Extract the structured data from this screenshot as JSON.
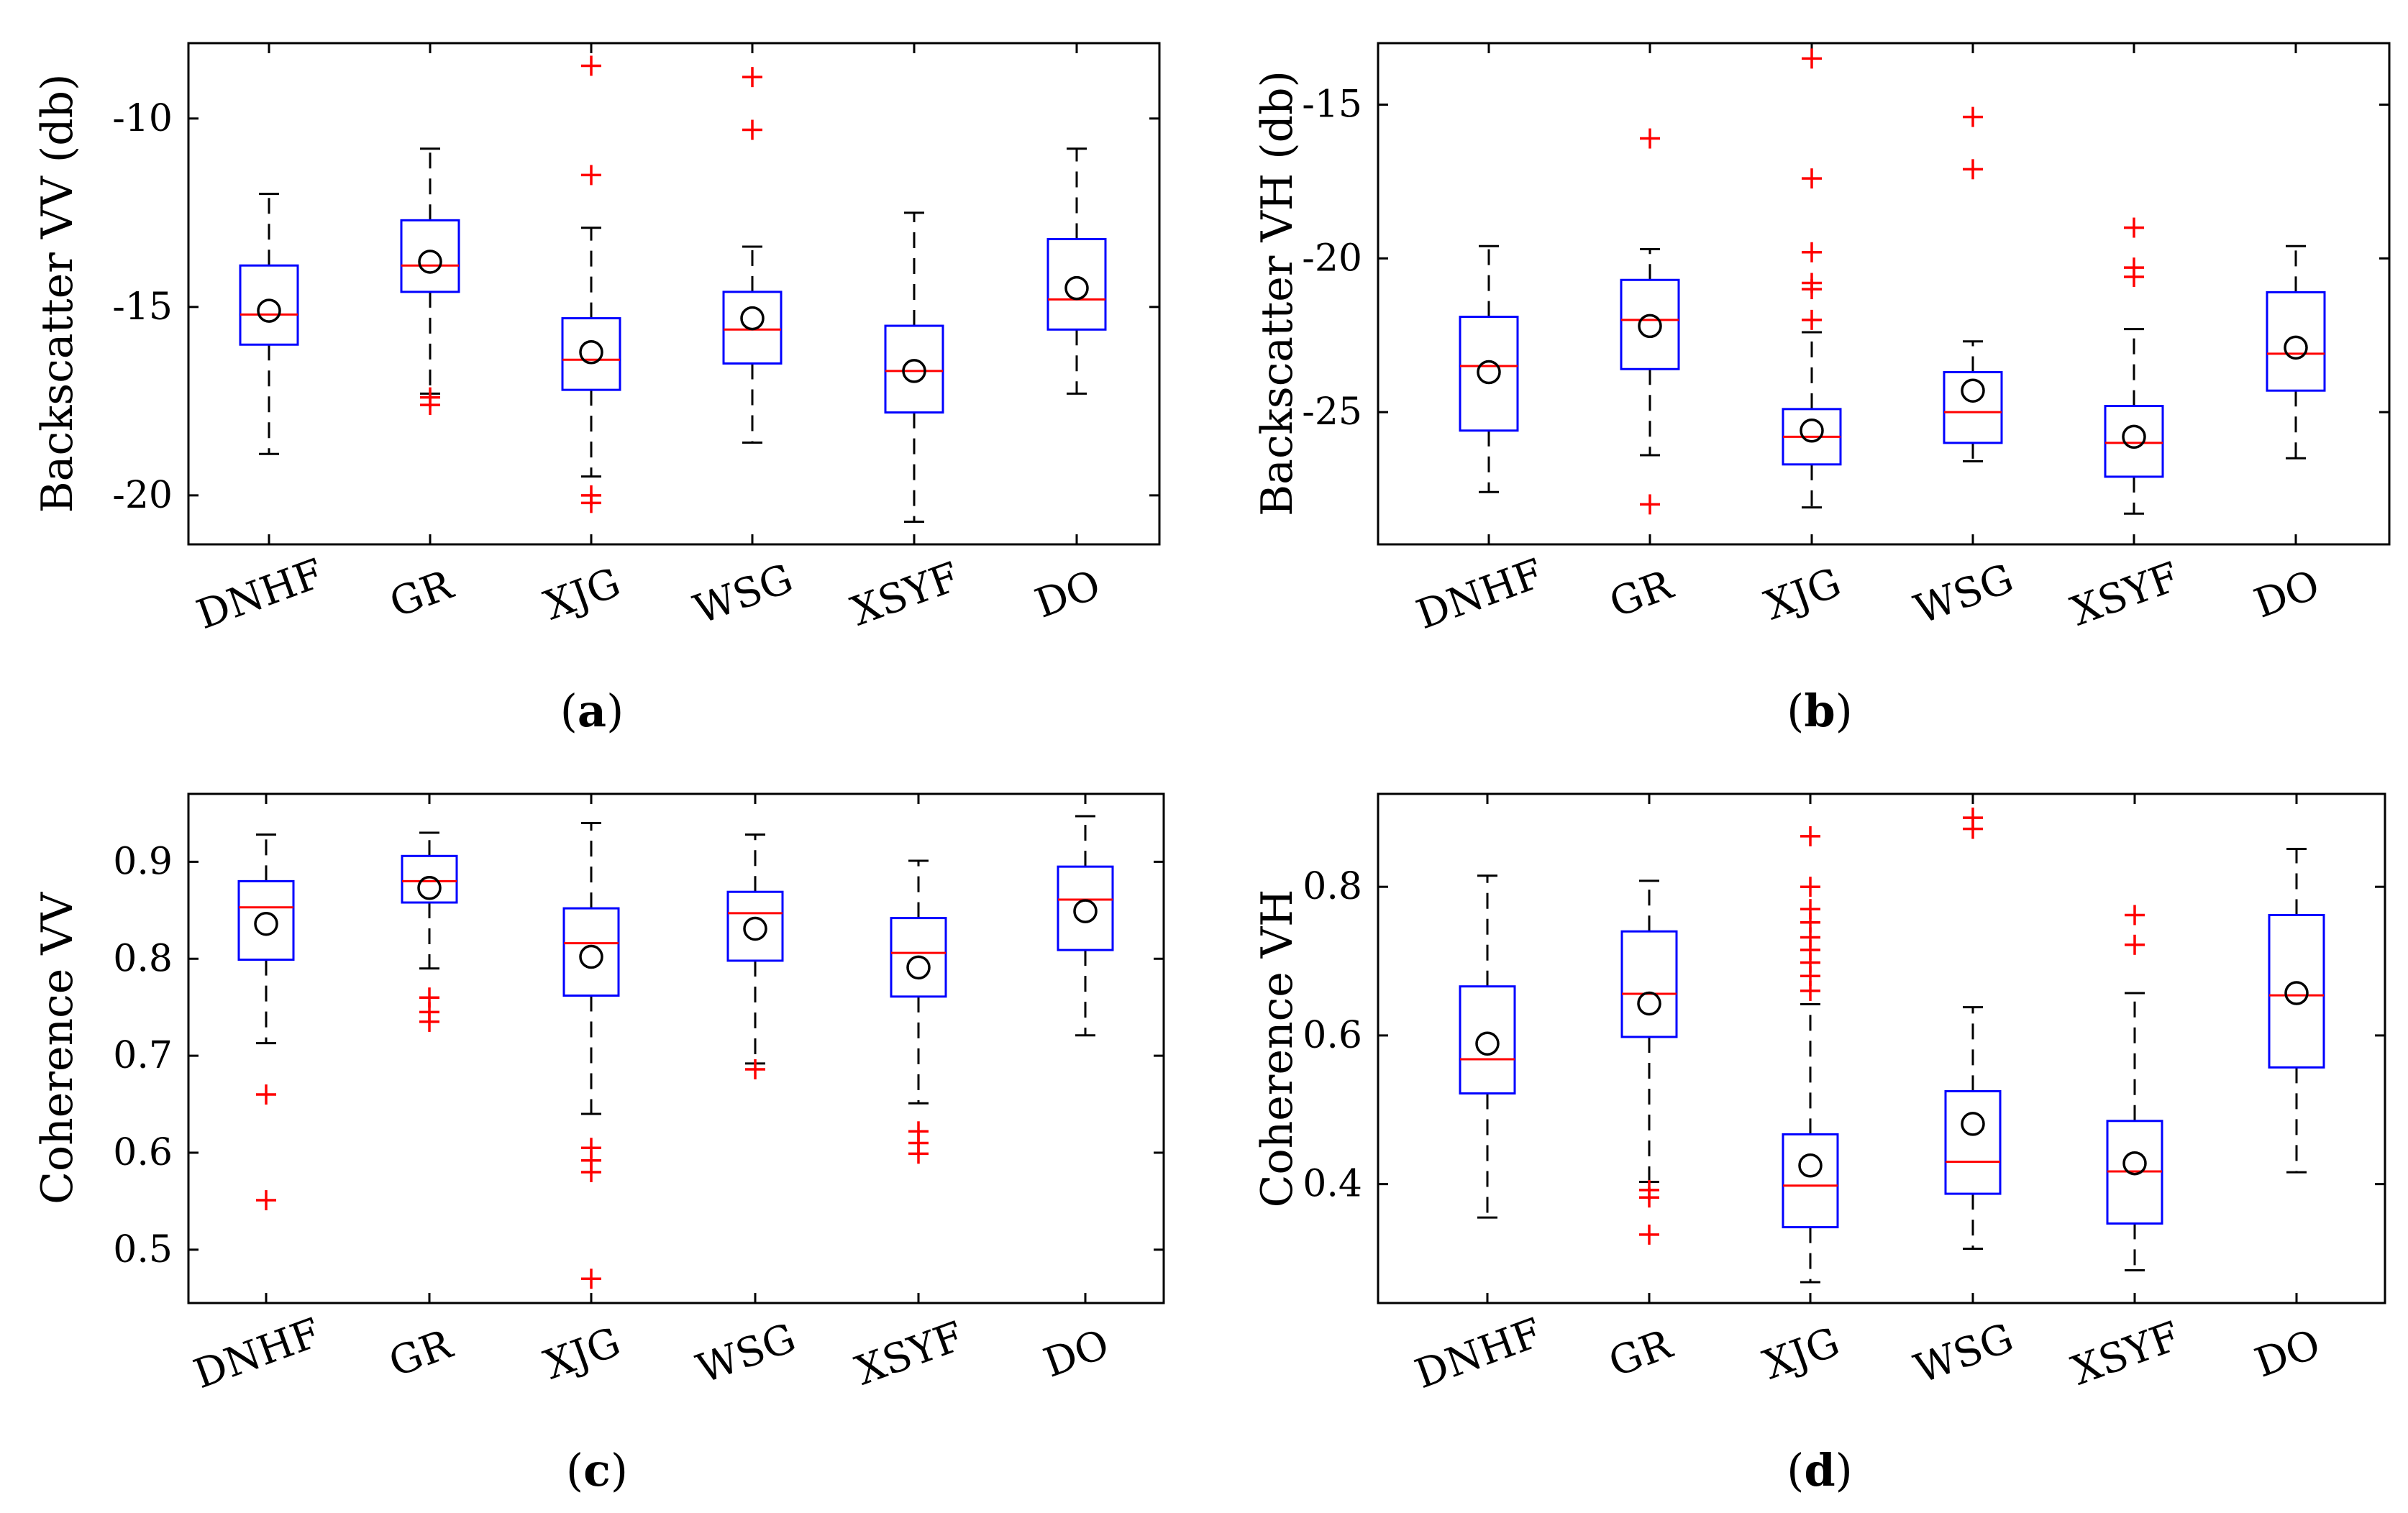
{
  "colors": {
    "box": "#0000ff",
    "median": "#ff0000",
    "outlier": "#ff0000",
    "whisker": "#000000",
    "mean_marker": "#000000"
  },
  "chart_data": [
    {
      "type": "box",
      "panel": "a",
      "caption": {
        "open": "(",
        "letter": "a",
        "close": ")"
      },
      "ylabel": "Backscatter VV  (db)",
      "ylim": [
        -21.3,
        -8.0
      ],
      "yticks": [
        -10,
        -15,
        -20
      ],
      "categories": [
        "DNHF",
        "GR",
        "XJG",
        "WSG",
        "XSYF",
        "DO"
      ],
      "boxes": [
        {
          "whisker_low": -18.9,
          "q1": -16.0,
          "median": -15.2,
          "q3": -13.9,
          "whisker_high": -12.0,
          "mean": -15.1,
          "outliers": []
        },
        {
          "whisker_low": -17.3,
          "q1": -14.6,
          "median": -13.9,
          "q3": -12.7,
          "whisker_high": -10.8,
          "mean": -13.8,
          "outliers": [
            -17.6,
            -17.4
          ]
        },
        {
          "whisker_low": -19.5,
          "q1": -17.2,
          "median": -16.4,
          "q3": -15.3,
          "whisker_high": -12.9,
          "mean": -16.2,
          "outliers": [
            -20.2,
            -20.0,
            -11.5,
            -8.6
          ]
        },
        {
          "whisker_low": -18.6,
          "q1": -16.5,
          "median": -15.6,
          "q3": -14.6,
          "whisker_high": -13.4,
          "mean": -15.3,
          "outliers": [
            -10.3,
            -8.9
          ]
        },
        {
          "whisker_low": -20.7,
          "q1": -17.8,
          "median": -16.7,
          "q3": -15.5,
          "whisker_high": -12.5,
          "mean": -16.7,
          "outliers": []
        },
        {
          "whisker_low": -17.3,
          "q1": -15.6,
          "median": -14.8,
          "q3": -13.2,
          "whisker_high": -10.8,
          "mean": -14.5,
          "outliers": []
        }
      ]
    },
    {
      "type": "box",
      "panel": "b",
      "caption": {
        "open": "(",
        "letter": "b",
        "close": ")"
      },
      "ylabel": "Backscatter VH  (db)",
      "ylim": [
        -29.3,
        -13.0
      ],
      "yticks": [
        -15,
        -20,
        -25
      ],
      "categories": [
        "DNHF",
        "GR",
        "XJG",
        "WSG",
        "XSYF",
        "DO"
      ],
      "boxes": [
        {
          "whisker_low": -27.6,
          "q1": -25.6,
          "median": -23.5,
          "q3": -21.9,
          "whisker_high": -19.6,
          "mean": -23.7,
          "outliers": []
        },
        {
          "whisker_low": -26.4,
          "q1": -23.6,
          "median": -22.0,
          "q3": -20.7,
          "whisker_high": -19.7,
          "mean": -22.2,
          "outliers": [
            -28.0,
            -16.1
          ]
        },
        {
          "whisker_low": -28.1,
          "q1": -26.7,
          "median": -25.8,
          "q3": -24.9,
          "whisker_high": -22.4,
          "mean": -25.6,
          "outliers": [
            -22.0,
            -21.0,
            -20.8,
            -19.8,
            -17.4,
            -13.5
          ]
        },
        {
          "whisker_low": -26.6,
          "q1": -26.0,
          "median": -25.0,
          "q3": -23.7,
          "whisker_high": -22.7,
          "mean": -24.3,
          "outliers": [
            -17.1,
            -15.4
          ]
        },
        {
          "whisker_low": -28.3,
          "q1": -27.1,
          "median": -26.0,
          "q3": -24.8,
          "whisker_high": -22.3,
          "mean": -25.8,
          "outliers": [
            -20.6,
            -20.3,
            -19.0
          ]
        },
        {
          "whisker_low": -26.5,
          "q1": -24.3,
          "median": -23.1,
          "q3": -21.1,
          "whisker_high": -19.6,
          "mean": -22.9,
          "outliers": []
        }
      ]
    },
    {
      "type": "box",
      "panel": "c",
      "caption": {
        "open": "(",
        "letter": "c",
        "close": ")"
      },
      "ylabel": "Coherence VV",
      "ylim": [
        0.445,
        0.97
      ],
      "yticks": [
        0.9,
        0.8,
        0.7,
        0.6,
        0.5
      ],
      "categories": [
        "DNHF",
        "GR",
        "XJG",
        "WSG",
        "XSYF",
        "DO"
      ],
      "boxes": [
        {
          "whisker_low": 0.713,
          "q1": 0.799,
          "median": 0.853,
          "q3": 0.88,
          "whisker_high": 0.928,
          "mean": 0.836,
          "outliers": [
            0.551,
            0.66
          ]
        },
        {
          "whisker_low": 0.79,
          "q1": 0.858,
          "median": 0.88,
          "q3": 0.906,
          "whisker_high": 0.93,
          "mean": 0.873,
          "outliers": [
            0.735,
            0.745,
            0.76
          ]
        },
        {
          "whisker_low": 0.64,
          "q1": 0.762,
          "median": 0.816,
          "q3": 0.852,
          "whisker_high": 0.94,
          "mean": 0.802,
          "outliers": [
            0.47,
            0.58,
            0.592,
            0.605
          ]
        },
        {
          "whisker_low": 0.692,
          "q1": 0.798,
          "median": 0.847,
          "q3": 0.869,
          "whisker_high": 0.928,
          "mean": 0.831,
          "outliers": [
            0.686
          ]
        },
        {
          "whisker_low": 0.651,
          "q1": 0.761,
          "median": 0.806,
          "q3": 0.842,
          "whisker_high": 0.901,
          "mean": 0.791,
          "outliers": [
            0.599,
            0.61,
            0.622
          ]
        },
        {
          "whisker_low": 0.721,
          "q1": 0.809,
          "median": 0.861,
          "q3": 0.895,
          "whisker_high": 0.947,
          "mean": 0.849,
          "outliers": []
        }
      ]
    },
    {
      "type": "box",
      "panel": "d",
      "caption": {
        "open": "(",
        "letter": "d",
        "close": ")"
      },
      "ylabel": "Coherence VH",
      "ylim": [
        0.24,
        0.925
      ],
      "yticks": [
        0.8,
        0.6,
        0.4
      ],
      "categories": [
        "DNHF",
        "GR",
        "XJG",
        "WSG",
        "XSYF",
        "DO"
      ],
      "boxes": [
        {
          "whisker_low": 0.355,
          "q1": 0.522,
          "median": 0.568,
          "q3": 0.666,
          "whisker_high": 0.815,
          "mean": 0.589,
          "outliers": []
        },
        {
          "whisker_low": 0.403,
          "q1": 0.598,
          "median": 0.656,
          "q3": 0.74,
          "whisker_high": 0.808,
          "mean": 0.643,
          "outliers": [
            0.332,
            0.382,
            0.392
          ]
        },
        {
          "whisker_low": 0.268,
          "q1": 0.342,
          "median": 0.398,
          "q3": 0.467,
          "whisker_high": 0.642,
          "mean": 0.425,
          "outliers": [
            0.66,
            0.68,
            0.698,
            0.715,
            0.732,
            0.752,
            0.77,
            0.8,
            0.868
          ]
        },
        {
          "whisker_low": 0.313,
          "q1": 0.387,
          "median": 0.43,
          "q3": 0.525,
          "whisker_high": 0.638,
          "mean": 0.481,
          "outliers": [
            0.878,
            0.893
          ]
        },
        {
          "whisker_low": 0.284,
          "q1": 0.347,
          "median": 0.417,
          "q3": 0.485,
          "whisker_high": 0.657,
          "mean": 0.428,
          "outliers": [
            0.722,
            0.762
          ]
        },
        {
          "whisker_low": 0.416,
          "q1": 0.557,
          "median": 0.654,
          "q3": 0.762,
          "whisker_high": 0.851,
          "mean": 0.657,
          "outliers": []
        }
      ]
    }
  ]
}
